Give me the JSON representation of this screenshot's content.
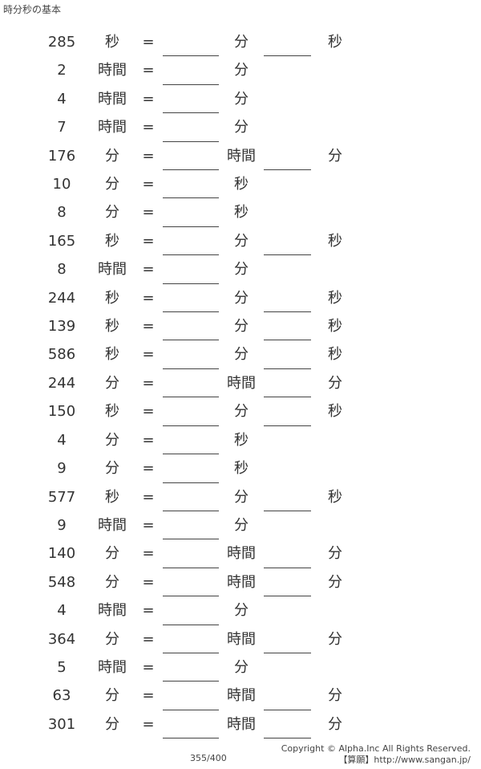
{
  "title": "時分秒の基本",
  "equals": "=",
  "problems": [
    {
      "value": "285",
      "from": "秒",
      "u1": "分",
      "u2": "秒"
    },
    {
      "value": "2",
      "from": "時間",
      "u1": "分",
      "u2": ""
    },
    {
      "value": "4",
      "from": "時間",
      "u1": "分",
      "u2": ""
    },
    {
      "value": "7",
      "from": "時間",
      "u1": "分",
      "u2": ""
    },
    {
      "value": "176",
      "from": "分",
      "u1": "時間",
      "u2": "分"
    },
    {
      "value": "10",
      "from": "分",
      "u1": "秒",
      "u2": ""
    },
    {
      "value": "8",
      "from": "分",
      "u1": "秒",
      "u2": ""
    },
    {
      "value": "165",
      "from": "秒",
      "u1": "分",
      "u2": "秒"
    },
    {
      "value": "8",
      "from": "時間",
      "u1": "分",
      "u2": ""
    },
    {
      "value": "244",
      "from": "秒",
      "u1": "分",
      "u2": "秒"
    },
    {
      "value": "139",
      "from": "秒",
      "u1": "分",
      "u2": "秒"
    },
    {
      "value": "586",
      "from": "秒",
      "u1": "分",
      "u2": "秒"
    },
    {
      "value": "244",
      "from": "分",
      "u1": "時間",
      "u2": "分"
    },
    {
      "value": "150",
      "from": "秒",
      "u1": "分",
      "u2": "秒"
    },
    {
      "value": "4",
      "from": "分",
      "u1": "秒",
      "u2": ""
    },
    {
      "value": "9",
      "from": "分",
      "u1": "秒",
      "u2": ""
    },
    {
      "value": "577",
      "from": "秒",
      "u1": "分",
      "u2": "秒"
    },
    {
      "value": "9",
      "from": "時間",
      "u1": "分",
      "u2": ""
    },
    {
      "value": "140",
      "from": "分",
      "u1": "時間",
      "u2": "分"
    },
    {
      "value": "548",
      "from": "分",
      "u1": "時間",
      "u2": "分"
    },
    {
      "value": "4",
      "from": "時間",
      "u1": "分",
      "u2": ""
    },
    {
      "value": "364",
      "from": "分",
      "u1": "時間",
      "u2": "分"
    },
    {
      "value": "5",
      "from": "時間",
      "u1": "分",
      "u2": ""
    },
    {
      "value": "63",
      "from": "分",
      "u1": "時間",
      "u2": "分"
    },
    {
      "value": "301",
      "from": "分",
      "u1": "時間",
      "u2": "分"
    }
  ],
  "footer": {
    "page": "355/400",
    "copyright": "Copyright © Alpha.Inc All Rights Reserved.",
    "site": "【算願】http://www.sangan.jp/"
  }
}
